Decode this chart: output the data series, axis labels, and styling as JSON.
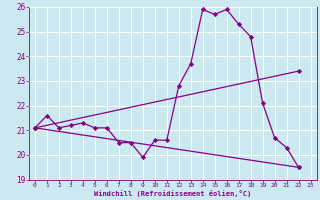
{
  "title": "",
  "xlabel": "Windchill (Refroidissement éolien,°C)",
  "ylabel": "",
  "xlim": [
    -0.5,
    23.5
  ],
  "ylim": [
    19,
    26
  ],
  "yticks": [
    19,
    20,
    21,
    22,
    23,
    24,
    25,
    26
  ],
  "xticks": [
    0,
    1,
    2,
    3,
    4,
    5,
    6,
    7,
    8,
    9,
    10,
    11,
    12,
    13,
    14,
    15,
    16,
    17,
    18,
    19,
    20,
    21,
    22,
    23
  ],
  "background_color": "#cce9f0",
  "grid_color": "#ffffff",
  "line_color": "#880088",
  "line1_x": [
    0,
    1,
    2,
    3,
    4,
    5,
    6,
    7,
    8,
    9,
    10,
    11,
    12,
    13,
    14,
    15,
    16,
    17,
    18,
    19,
    20,
    21,
    22
  ],
  "line1_y": [
    21.1,
    21.6,
    21.1,
    21.2,
    21.3,
    21.1,
    21.1,
    20.5,
    20.5,
    19.9,
    20.6,
    20.6,
    22.8,
    23.7,
    25.9,
    25.7,
    25.9,
    25.3,
    24.8,
    22.1,
    20.7,
    20.3,
    19.5
  ],
  "line2_x": [
    0,
    22
  ],
  "line2_y": [
    21.1,
    19.5
  ],
  "line3_x": [
    0,
    22
  ],
  "line3_y": [
    21.1,
    23.4
  ],
  "marker": "D",
  "markersize": 2.2,
  "linewidth": 0.9
}
